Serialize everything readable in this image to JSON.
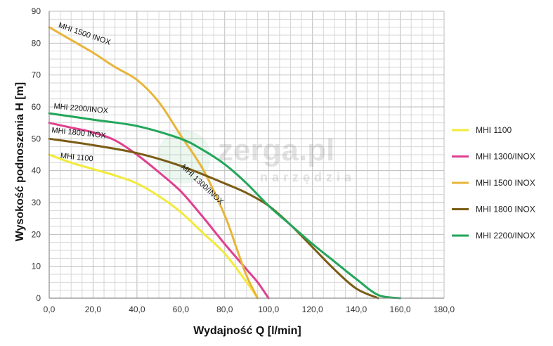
{
  "chart_data": {
    "type": "line",
    "xlabel": "Wydajność Q [l/min]",
    "ylabel": "Wysokość podnoszenia H [m]",
    "xlim": [
      0,
      180
    ],
    "ylim": [
      0,
      90
    ],
    "x_ticks": [
      "0,0",
      "20,0",
      "40,0",
      "60,0",
      "80,0",
      "100,0",
      "120,0",
      "140,0",
      "160,0",
      "180,0"
    ],
    "y_ticks": [
      "0",
      "10",
      "20",
      "30",
      "40",
      "50",
      "60",
      "70",
      "80",
      "90"
    ],
    "grid": true,
    "legend_position": "right",
    "watermark": {
      "main": "zerga.pl",
      "sub": "narzędzia"
    },
    "series": [
      {
        "name": "MHI 1100",
        "color": "#f2ea3c",
        "label": "MHI 1100",
        "x": [
          0,
          10,
          20,
          30,
          40,
          50,
          60,
          70,
          80,
          90,
          95
        ],
        "y": [
          45,
          42.5,
          40.5,
          38.5,
          36,
          32,
          27,
          20.5,
          14,
          5,
          0
        ]
      },
      {
        "name": "MHI 1300/INOX",
        "color": "#e0408f",
        "label": "MHI 1300/INOX",
        "x": [
          0,
          10,
          20,
          30,
          40,
          50,
          60,
          70,
          80,
          90,
          95,
          100
        ],
        "y": [
          55,
          53.5,
          52,
          49.5,
          45,
          39.5,
          33.5,
          25.5,
          17,
          9,
          5,
          0
        ]
      },
      {
        "name": "MHI 1500 INOX",
        "color": "#e8b53a",
        "label": "MHI 1500 INOX",
        "x": [
          0,
          10,
          20,
          30,
          40,
          50,
          60,
          70,
          80,
          85,
          90,
          95
        ],
        "y": [
          85,
          81,
          77,
          72.5,
          68.5,
          61.5,
          51,
          40.5,
          26,
          16.5,
          7,
          0
        ]
      },
      {
        "name": "MHI 1800 INOX",
        "color": "#7a5c14",
        "label": "MHI 1800 INOX",
        "x": [
          0,
          20,
          40,
          60,
          80,
          90,
          100,
          110,
          120,
          130,
          140,
          150
        ],
        "y": [
          50,
          48,
          45.5,
          41.5,
          36,
          33,
          29,
          23,
          16,
          9,
          3,
          0
        ]
      },
      {
        "name": "MHI 2200/INOX",
        "color": "#22a65a",
        "label": "MHI 2200/INOX",
        "x": [
          0,
          20,
          40,
          60,
          70,
          80,
          90,
          100,
          110,
          120,
          130,
          140,
          150,
          160
        ],
        "y": [
          58,
          56,
          54,
          50,
          46.5,
          42,
          36,
          29,
          23,
          17,
          11.5,
          6,
          1,
          0
        ]
      }
    ]
  }
}
